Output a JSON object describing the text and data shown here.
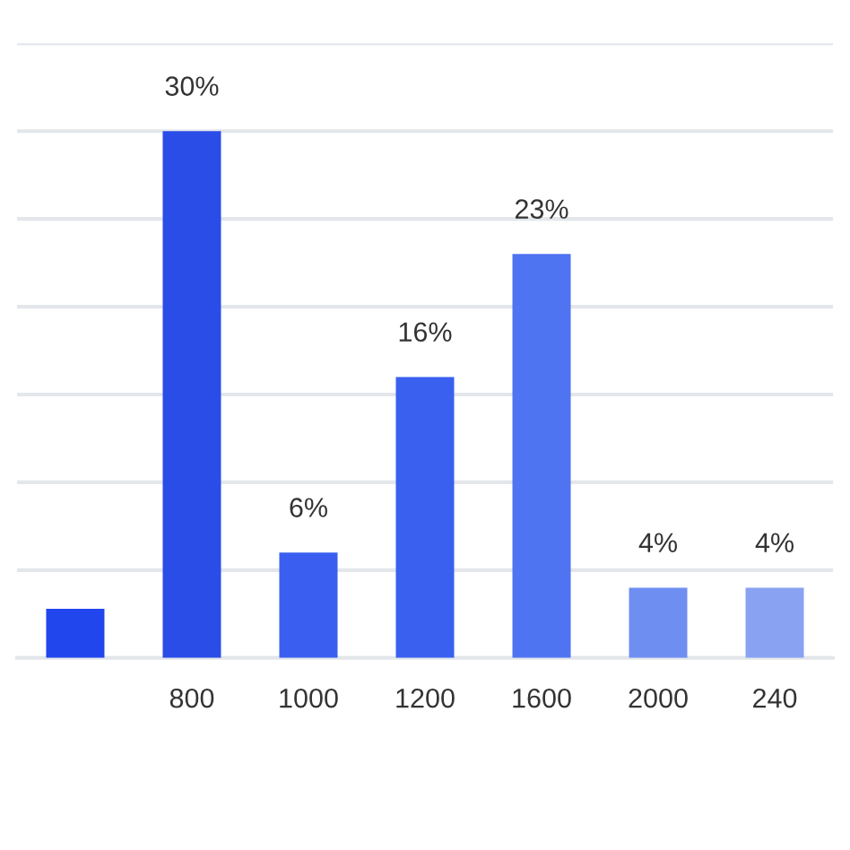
{
  "chart_data": {
    "type": "bar",
    "categories": [
      null,
      "800",
      "1000",
      "1200",
      "1600",
      "2000",
      "240"
    ],
    "values": [
      2.8,
      30,
      6,
      16,
      23,
      4,
      4
    ],
    "value_labels": [
      null,
      "30%",
      "6%",
      "16%",
      "23%",
      "4%",
      "4%"
    ],
    "colors": [
      "#2246ee",
      "#2a4de8",
      "#3a5ff0",
      "#3a60f0",
      "#4f74f2",
      "#6f8ef2",
      "#8aa2f2"
    ],
    "ylim": [
      0,
      35
    ],
    "yticks": [
      {
        "value": 0,
        "label": null
      },
      {
        "value": 5,
        "label": null
      },
      {
        "value": 10,
        "label": null
      },
      {
        "value": 15,
        "label": null
      },
      {
        "value": 20,
        "label": null
      },
      {
        "value": 25,
        "label": null
      },
      {
        "value": 30,
        "label": null
      },
      {
        "value": 35,
        "label": null
      }
    ],
    "grid": "y",
    "tick_labels": "x"
  }
}
